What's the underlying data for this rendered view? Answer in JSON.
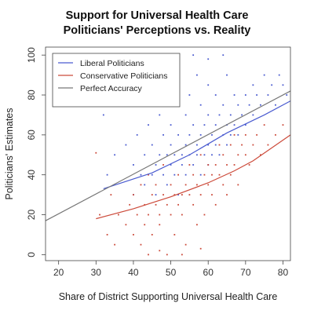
{
  "chart_data": {
    "type": "scatter",
    "title": "Support for Universal Health Care",
    "subtitle": "Politicians' Perceptions vs. Reality",
    "xlabel": "Share of District Supporting Universal Health Care",
    "ylabel": "Politicians' Estimates",
    "xlim": [
      16.5,
      82
    ],
    "ylim": [
      -3,
      104
    ],
    "xticks": [
      20,
      30,
      40,
      50,
      60,
      70,
      80
    ],
    "yticks": [
      0,
      20,
      40,
      60,
      80,
      100
    ],
    "grid": false,
    "legend_position": "top-left",
    "series": [
      {
        "name": "Liberal Politicians",
        "color": "#4a5bd0",
        "line": [
          [
            32,
            33
          ],
          [
            45,
            41
          ],
          [
            55,
            50
          ],
          [
            65,
            61
          ],
          [
            75,
            70
          ],
          [
            82,
            77
          ]
        ],
        "points": [
          [
            32,
            70
          ],
          [
            33,
            40
          ],
          [
            35,
            50
          ],
          [
            38,
            55
          ],
          [
            40,
            45
          ],
          [
            40,
            30
          ],
          [
            41,
            60
          ],
          [
            42,
            40
          ],
          [
            43,
            35
          ],
          [
            43,
            50
          ],
          [
            44,
            65
          ],
          [
            45,
            40
          ],
          [
            45,
            55
          ],
          [
            46,
            30
          ],
          [
            46,
            45
          ],
          [
            47,
            50
          ],
          [
            47,
            70
          ],
          [
            48,
            40
          ],
          [
            48,
            60
          ],
          [
            49,
            35
          ],
          [
            49,
            50
          ],
          [
            50,
            45
          ],
          [
            50,
            55
          ],
          [
            50,
            65
          ],
          [
            51,
            40
          ],
          [
            51,
            50
          ],
          [
            52,
            30
          ],
          [
            52,
            60
          ],
          [
            52,
            75
          ],
          [
            53,
            45
          ],
          [
            53,
            50
          ],
          [
            54,
            40
          ],
          [
            54,
            55
          ],
          [
            54,
            70
          ],
          [
            55,
            50
          ],
          [
            55,
            60
          ],
          [
            55,
            80
          ],
          [
            56,
            45
          ],
          [
            56,
            65
          ],
          [
            57,
            50
          ],
          [
            57,
            55
          ],
          [
            57,
            90
          ],
          [
            58,
            40
          ],
          [
            58,
            60
          ],
          [
            58,
            75
          ],
          [
            59,
            50
          ],
          [
            59,
            65
          ],
          [
            60,
            45
          ],
          [
            60,
            55
          ],
          [
            60,
            70
          ],
          [
            60,
            85
          ],
          [
            61,
            50
          ],
          [
            61,
            60
          ],
          [
            62,
            55
          ],
          [
            62,
            65
          ],
          [
            62,
            80
          ],
          [
            63,
            50
          ],
          [
            63,
            70
          ],
          [
            64,
            60
          ],
          [
            64,
            75
          ],
          [
            65,
            55
          ],
          [
            65,
            65
          ],
          [
            65,
            90
          ],
          [
            66,
            60
          ],
          [
            66,
            70
          ],
          [
            67,
            65
          ],
          [
            67,
            80
          ],
          [
            68,
            60
          ],
          [
            68,
            75
          ],
          [
            69,
            70
          ],
          [
            70,
            65
          ],
          [
            70,
            80
          ],
          [
            71,
            75
          ],
          [
            72,
            70
          ],
          [
            72,
            85
          ],
          [
            73,
            80
          ],
          [
            74,
            75
          ],
          [
            75,
            90
          ],
          [
            76,
            80
          ],
          [
            77,
            85
          ],
          [
            78,
            75
          ],
          [
            79,
            90
          ],
          [
            80,
            85
          ],
          [
            81,
            80
          ],
          [
            56,
            100
          ],
          [
            60,
            98
          ],
          [
            64,
            100
          ],
          [
            52,
            90
          ],
          [
            48,
            85
          ],
          [
            46,
            75
          ]
        ]
      },
      {
        "name": "Conservative Politicians",
        "color": "#cc4a3a",
        "line": [
          [
            30,
            18
          ],
          [
            40,
            23
          ],
          [
            50,
            29
          ],
          [
            60,
            36
          ],
          [
            67,
            42
          ],
          [
            72,
            47
          ],
          [
            82,
            60
          ]
        ],
        "points": [
          [
            30,
            51
          ],
          [
            31,
            20
          ],
          [
            33,
            10
          ],
          [
            34,
            30
          ],
          [
            35,
            5
          ],
          [
            36,
            20
          ],
          [
            38,
            15
          ],
          [
            39,
            25
          ],
          [
            40,
            10
          ],
          [
            40,
            30
          ],
          [
            41,
            20
          ],
          [
            42,
            5
          ],
          [
            42,
            35
          ],
          [
            43,
            15
          ],
          [
            43,
            25
          ],
          [
            44,
            20
          ],
          [
            44,
            40
          ],
          [
            45,
            10
          ],
          [
            45,
            30
          ],
          [
            46,
            25
          ],
          [
            46,
            35
          ],
          [
            47,
            15
          ],
          [
            47,
            20
          ],
          [
            48,
            30
          ],
          [
            48,
            45
          ],
          [
            49,
            25
          ],
          [
            49,
            0
          ],
          [
            50,
            20
          ],
          [
            50,
            35
          ],
          [
            51,
            30
          ],
          [
            51,
            10
          ],
          [
            52,
            25
          ],
          [
            52,
            40
          ],
          [
            53,
            30
          ],
          [
            53,
            20
          ],
          [
            54,
            35
          ],
          [
            54,
            5
          ],
          [
            55,
            30
          ],
          [
            55,
            45
          ],
          [
            56,
            25
          ],
          [
            56,
            40
          ],
          [
            57,
            35
          ],
          [
            57,
            15
          ],
          [
            58,
            30
          ],
          [
            58,
            50
          ],
          [
            59,
            40
          ],
          [
            59,
            20
          ],
          [
            60,
            35
          ],
          [
            60,
            45
          ],
          [
            61,
            30
          ],
          [
            61,
            40
          ],
          [
            62,
            45
          ],
          [
            62,
            25
          ],
          [
            63,
            40
          ],
          [
            63,
            55
          ],
          [
            64,
            35
          ],
          [
            64,
            50
          ],
          [
            65,
            45
          ],
          [
            65,
            30
          ],
          [
            66,
            40
          ],
          [
            66,
            55
          ],
          [
            67,
            45
          ],
          [
            67,
            60
          ],
          [
            68,
            50
          ],
          [
            68,
            35
          ],
          [
            69,
            55
          ],
          [
            70,
            50
          ],
          [
            70,
            60
          ],
          [
            71,
            45
          ],
          [
            72,
            55
          ],
          [
            73,
            60
          ],
          [
            74,
            50
          ],
          [
            75,
            65
          ],
          [
            76,
            55
          ],
          [
            78,
            60
          ],
          [
            80,
            65
          ],
          [
            44,
            0
          ],
          [
            47,
            2
          ],
          [
            53,
            0
          ],
          [
            58,
            3
          ]
        ]
      },
      {
        "name": "Perfect Accuracy",
        "color": "#777777",
        "line": [
          [
            16.5,
            17
          ],
          [
            82,
            82
          ]
        ]
      }
    ]
  }
}
